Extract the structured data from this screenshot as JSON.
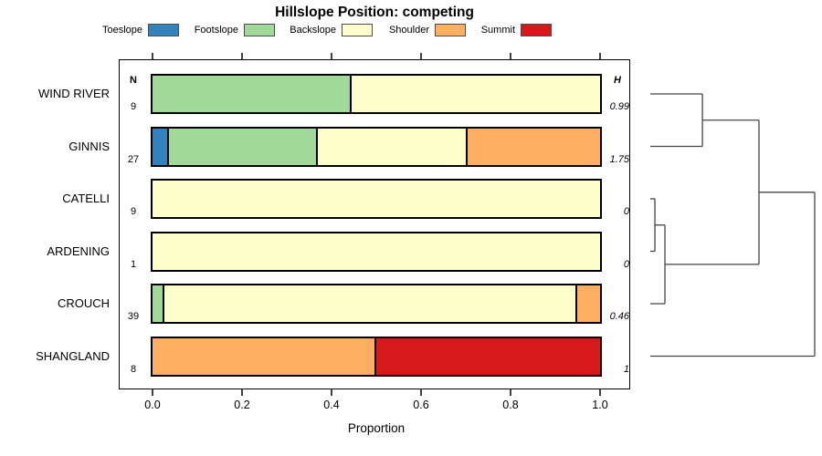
{
  "title": "Hillslope Position: competing",
  "legend": {
    "items": [
      {
        "label": "Toeslope",
        "color": "#3182bd"
      },
      {
        "label": "Footslope",
        "color": "#a1d99b"
      },
      {
        "label": "Backslope",
        "color": "#ffffcc"
      },
      {
        "label": "Shoulder",
        "color": "#fdae61"
      },
      {
        "label": "Summit",
        "color": "#d7191c"
      }
    ]
  },
  "chart_data": {
    "type": "bar",
    "orientation": "horizontal-stacked",
    "title": "Hillslope Position: competing",
    "xlabel": "Proportion",
    "xlim": [
      0,
      1
    ],
    "xtick_labels": [
      "0.0",
      "0.2",
      "0.4",
      "0.6",
      "0.8",
      "1.0"
    ],
    "xtick_values": [
      0.0,
      0.2,
      0.4,
      0.6,
      0.8,
      1.0
    ],
    "stack_categories": [
      "Toeslope",
      "Footslope",
      "Backslope",
      "Shoulder",
      "Summit"
    ],
    "colors": {
      "Toeslope": "#3182bd",
      "Footslope": "#a1d99b",
      "Backslope": "#ffffcc",
      "Shoulder": "#fdae61",
      "Summit": "#d7191c"
    },
    "columns": {
      "n_header": "N",
      "h_header": "H"
    },
    "rows": [
      {
        "name": "WIND RIVER",
        "n": "9",
        "h": "0.99",
        "segments": [
          {
            "position": "Footslope",
            "fraction": 0.444
          },
          {
            "position": "Backslope",
            "fraction": 0.556
          }
        ]
      },
      {
        "name": "GINNIS",
        "n": "27",
        "h": "1.75",
        "segments": [
          {
            "position": "Toeslope",
            "fraction": 0.037
          },
          {
            "position": "Footslope",
            "fraction": 0.333
          },
          {
            "position": "Backslope",
            "fraction": 0.334
          },
          {
            "position": "Shoulder",
            "fraction": 0.296
          }
        ]
      },
      {
        "name": "CATELLI",
        "n": "9",
        "h": "0",
        "segments": [
          {
            "position": "Backslope",
            "fraction": 1.0
          }
        ]
      },
      {
        "name": "ARDENING",
        "n": "1",
        "h": "0",
        "segments": [
          {
            "position": "Backslope",
            "fraction": 1.0
          }
        ]
      },
      {
        "name": "CROUCH",
        "n": "39",
        "h": "0.46",
        "segments": [
          {
            "position": "Footslope",
            "fraction": 0.026
          },
          {
            "position": "Backslope",
            "fraction": 0.923
          },
          {
            "position": "Shoulder",
            "fraction": 0.051
          }
        ]
      },
      {
        "name": "SHANGLAND",
        "n": "8",
        "h": "1",
        "segments": [
          {
            "position": "Shoulder",
            "fraction": 0.5
          },
          {
            "position": "Summit",
            "fraction": 0.5
          }
        ]
      }
    ],
    "dendrogram": {
      "leaf_order": [
        "WIND RIVER",
        "GINNIS",
        "CATELLI",
        "ARDENING",
        "CROUCH",
        "SHANGLAND"
      ],
      "merges": [
        {
          "id": "m1",
          "a": "WIND RIVER",
          "b": "GINNIS",
          "height": 0.317
        },
        {
          "id": "m2",
          "a": "CATELLI",
          "b": "ARDENING",
          "height": 0.028
        },
        {
          "id": "m3",
          "a": "m2",
          "b": "CROUCH",
          "height": 0.089
        },
        {
          "id": "m4",
          "a": "m1",
          "b": "m3",
          "height": 0.661
        },
        {
          "id": "m5",
          "a": "m4",
          "b": "SHANGLAND",
          "height": 1.0
        }
      ]
    }
  }
}
